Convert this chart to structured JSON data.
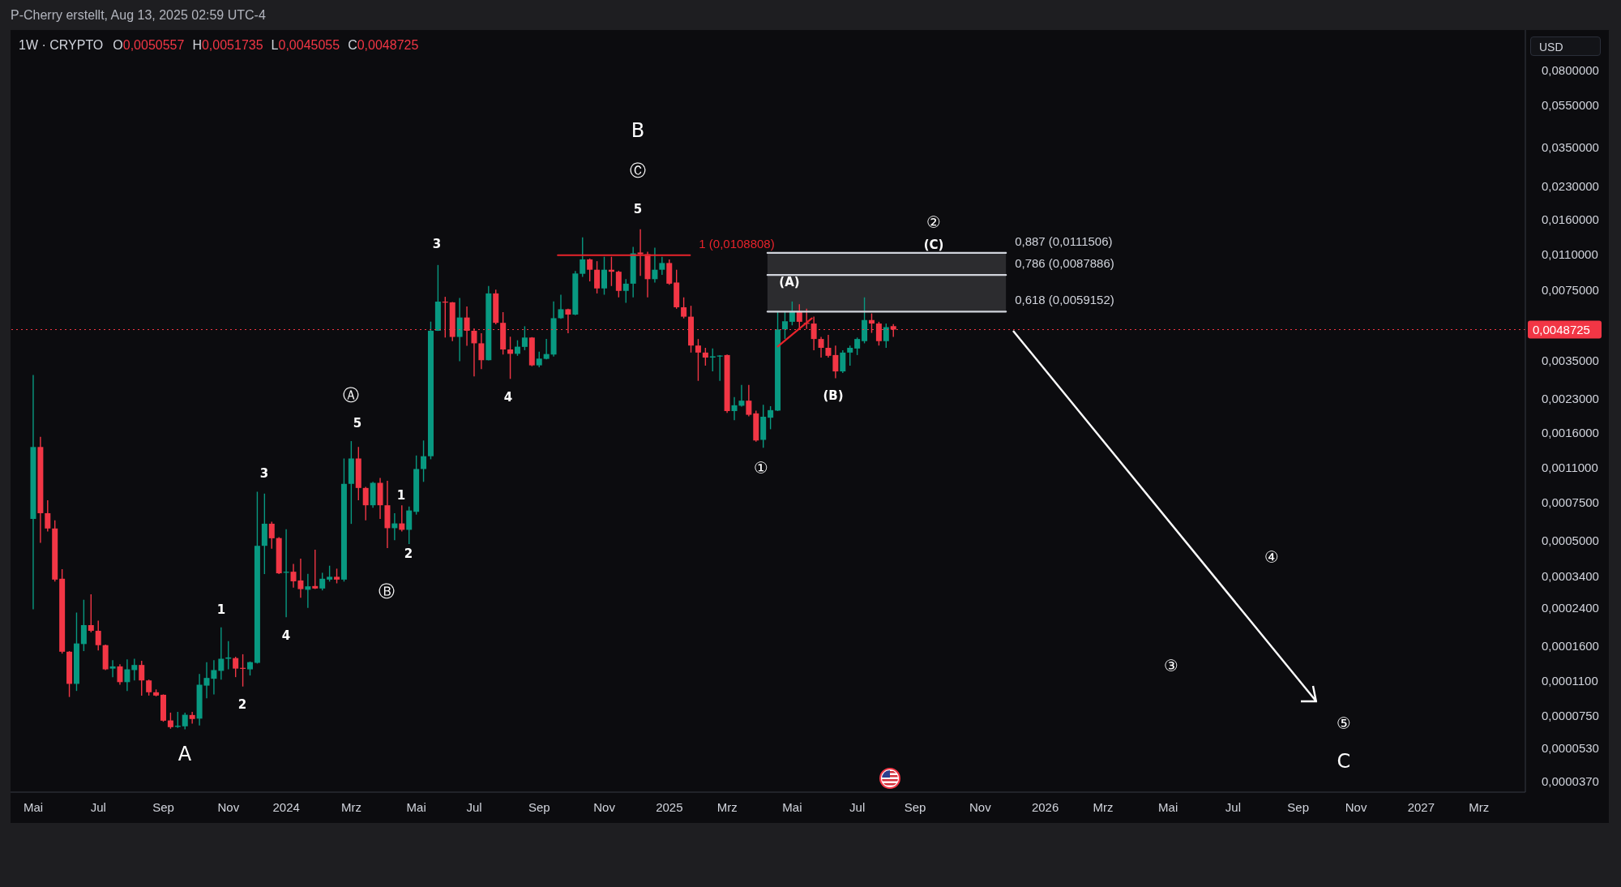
{
  "chart_data": {
    "type": "candlestick",
    "title": "1W · CRYPTO",
    "subtitle": "O0,0050557 H0,0051735 L0,0045055 C0,0048725",
    "ylabel": "USD",
    "x": [
      "2023-05-01",
      "2023-05-08",
      "2023-05-15",
      "2023-05-22",
      "2023-05-29",
      "2023-06-05",
      "2023-06-12",
      "2023-06-19",
      "2023-06-26",
      "2023-07-03",
      "2023-07-10",
      "2023-07-17",
      "2023-07-24",
      "2023-07-31",
      "2023-08-07",
      "2023-08-14",
      "2023-08-21",
      "2023-08-28",
      "2023-09-04",
      "2023-09-11",
      "2023-09-18",
      "2023-09-25",
      "2023-10-02",
      "2023-10-09",
      "2023-10-16",
      "2023-10-23",
      "2023-10-30",
      "2023-11-06",
      "2023-11-13",
      "2023-11-20",
      "2023-11-27",
      "2023-12-04",
      "2023-12-11",
      "2023-12-18",
      "2023-12-25",
      "2024-01-01",
      "2024-01-08",
      "2024-01-15",
      "2024-01-22",
      "2024-01-29",
      "2024-02-05",
      "2024-02-12",
      "2024-02-19",
      "2024-02-26",
      "2024-03-04",
      "2024-03-11",
      "2024-03-18",
      "2024-03-25",
      "2024-04-01",
      "2024-04-08",
      "2024-04-15",
      "2024-04-22",
      "2024-04-29",
      "2024-05-06",
      "2024-05-13",
      "2024-05-20",
      "2024-05-27",
      "2024-06-03",
      "2024-06-10",
      "2024-06-17",
      "2024-06-24",
      "2024-07-01",
      "2024-07-08",
      "2024-07-15",
      "2024-07-22",
      "2024-07-29",
      "2024-08-05",
      "2024-08-12",
      "2024-08-19",
      "2024-08-26",
      "2024-09-02",
      "2024-09-09",
      "2024-09-16",
      "2024-09-23",
      "2024-09-30",
      "2024-10-07",
      "2024-10-14",
      "2024-10-21",
      "2024-10-28",
      "2024-11-04",
      "2024-11-11",
      "2024-11-18",
      "2024-11-25",
      "2024-12-02",
      "2024-12-09",
      "2024-12-16",
      "2024-12-23",
      "2024-12-30",
      "2025-01-06",
      "2025-01-13",
      "2025-01-20",
      "2025-01-27",
      "2025-02-03",
      "2025-02-10",
      "2025-02-17",
      "2025-02-24",
      "2025-03-03",
      "2025-03-10",
      "2025-03-17",
      "2025-03-24",
      "2025-03-31",
      "2025-04-07",
      "2025-04-14",
      "2025-04-21",
      "2025-04-28",
      "2025-05-05",
      "2025-05-12",
      "2025-05-19",
      "2025-05-26",
      "2025-06-02",
      "2025-06-09",
      "2025-06-16",
      "2025-06-23",
      "2025-06-30",
      "2025-07-07",
      "2025-07-14",
      "2025-07-21",
      "2025-07-28",
      "2025-08-04",
      "2025-08-11"
    ],
    "ohlc": [
      [
        0.00063,
        0.00298,
        0.000237,
        0.00137
      ],
      [
        0.00137,
        0.00153,
        0.000486,
        0.00067
      ],
      [
        0.00067,
        0.00077,
        0.00055,
        0.000568
      ],
      [
        0.000568,
        0.00062,
        0.00032,
        0.000327
      ],
      [
        0.00033,
        0.000366,
        0.000147,
        0.00015
      ],
      [
        0.00015,
        0.000151,
        9.2e-05,
        0.000106
      ],
      [
        0.000106,
        0.000229,
        9.82e-05,
        0.000164
      ],
      [
        0.000163,
        0.000263,
        0.000151,
        0.0002
      ],
      [
        0.0002,
        0.000279,
        0.000185,
        0.000188
      ],
      [
        0.000188,
        0.00021,
        0.000152,
        0.000161
      ],
      [
        0.000161,
        0.000162,
        0.000123,
        0.000124
      ],
      [
        0.000125,
        0.000137,
        0.000114,
        0.000128
      ],
      [
        0.000128,
        0.000131,
        0.000105,
        0.000108
      ],
      [
        0.000108,
        0.000138,
        9.82e-05,
        0.000124
      ],
      [
        0.000123,
        0.000139,
        0.00011,
        0.00013
      ],
      [
        0.00013,
        0.000136,
        9.34e-05,
        0.00011
      ],
      [
        0.00011,
        0.000111,
        9.34e-05,
        9.68e-05
      ],
      [
        9.68e-05,
        9.98e-05,
        9.26e-05,
        9.34e-05
      ],
      [
        9.42e-05,
        9.46e-05,
        7.04e-05,
        7.12e-05
      ],
      [
        7.14e-05,
        7.77e-05,
        6.53e-05,
        6.64e-05
      ],
      [
        6.66e-05,
        7.83e-05,
        6.59e-05,
        6.74e-05
      ],
      [
        6.7e-05,
        7.77e-05,
        6.48e-05,
        7.59e-05
      ],
      [
        7.57e-05,
        7.83e-05,
        6.89e-05,
        7.25e-05
      ],
      [
        7.28e-05,
        0.000118,
        6.76e-05,
        0.000105
      ],
      [
        0.000104,
        0.000134,
        9.07e-05,
        0.000113
      ],
      [
        0.000112,
        0.000137,
        9.46e-05,
        0.000123
      ],
      [
        0.000122,
        0.000195,
        0.000111,
        0.000139
      ],
      [
        0.000139,
        0.000168,
        0.000124,
        0.000141
      ],
      [
        0.00014,
        0.000142,
        0.000114,
        0.000125
      ],
      [
        0.000126,
        0.000146,
        0.000103,
        0.000125
      ],
      [
        0.000124,
        0.000135,
        0.000116,
        0.000134
      ],
      [
        0.000133,
        0.000845,
        0.000132,
        0.000471
      ],
      [
        0.000471,
        0.000828,
        0.000347,
        0.000598
      ],
      [
        0.000598,
        0.000611,
        0.000457,
        0.000511
      ],
      [
        0.000512,
        0.000517,
        0.000347,
        0.00035
      ],
      [
        0.000352,
        0.000564,
        0.000218,
        0.000356
      ],
      [
        0.000356,
        0.000387,
        0.0003,
        0.000321
      ],
      [
        0.000324,
        0.00041,
        0.000269,
        0.000295
      ],
      [
        0.000293,
        0.000348,
        0.000241,
        0.000304
      ],
      [
        0.000305,
        0.000452,
        0.000295,
        0.000297
      ],
      [
        0.000297,
        0.000352,
        0.000291,
        0.00033
      ],
      [
        0.000327,
        0.00038,
        0.00032,
        0.000337
      ],
      [
        0.000337,
        0.000368,
        0.000314,
        0.000327
      ],
      [
        0.000327,
        0.00121,
        0.00032,
        0.00092
      ],
      [
        0.00092,
        0.00146,
        0.000597,
        0.00121
      ],
      [
        0.00121,
        0.00137,
        0.00077,
        0.00088
      ],
      [
        0.00088,
        0.00089,
        0.00062,
        0.00073
      ],
      [
        0.00073,
        0.00094,
        0.00071,
        0.00093
      ],
      [
        0.00093,
        0.00098,
        0.00063,
        0.00073
      ],
      [
        0.00073,
        0.00095,
        0.00046,
        0.00057
      ],
      [
        0.00057,
        0.00067,
        0.0005,
        0.0006
      ],
      [
        0.0006,
        0.00073,
        0.00055,
        0.00056
      ],
      [
        0.00056,
        0.00072,
        0.00048,
        0.00069
      ],
      [
        0.00068,
        0.00125,
        0.00066,
        0.00108
      ],
      [
        0.00108,
        0.00147,
        0.00094,
        0.00124
      ],
      [
        0.00124,
        0.00531,
        0.0012,
        0.00481
      ],
      [
        0.00481,
        0.00979,
        0.0048,
        0.00659
      ],
      [
        0.00659,
        0.00694,
        0.00447,
        0.00654
      ],
      [
        0.00654,
        0.00656,
        0.0043,
        0.0045
      ],
      [
        0.0045,
        0.00686,
        0.00346,
        0.00555
      ],
      [
        0.00555,
        0.00625,
        0.00409,
        0.00481
      ],
      [
        0.00481,
        0.00494,
        0.00294,
        0.0042
      ],
      [
        0.0042,
        0.00468,
        0.00318,
        0.0035
      ],
      [
        0.0035,
        0.0078,
        0.00349,
        0.0072
      ],
      [
        0.0072,
        0.0075,
        0.00516,
        0.00524
      ],
      [
        0.00524,
        0.00588,
        0.00372,
        0.00393
      ],
      [
        0.00393,
        0.00451,
        0.00286,
        0.00375
      ],
      [
        0.00375,
        0.00434,
        0.00367,
        0.00405
      ],
      [
        0.00404,
        0.00505,
        0.0039,
        0.00447
      ],
      [
        0.00447,
        0.00449,
        0.00328,
        0.00331
      ],
      [
        0.00331,
        0.00384,
        0.00324,
        0.00356
      ],
      [
        0.00355,
        0.0044,
        0.00353,
        0.00374
      ],
      [
        0.00372,
        0.0066,
        0.00364,
        0.00551
      ],
      [
        0.00551,
        0.0071,
        0.00547,
        0.00607
      ],
      [
        0.00607,
        0.0061,
        0.00468,
        0.00573
      ],
      [
        0.00573,
        0.00918,
        0.00569,
        0.00893
      ],
      [
        0.0089,
        0.0132,
        0.0086,
        0.0104
      ],
      [
        0.0104,
        0.0105,
        0.0082,
        0.0093
      ],
      [
        0.0093,
        0.0102,
        0.0072,
        0.0076
      ],
      [
        0.0076,
        0.0107,
        0.0071,
        0.0093
      ],
      [
        0.0093,
        0.0107,
        0.0078,
        0.0091
      ],
      [
        0.0091,
        0.0092,
        0.0069,
        0.0074
      ],
      [
        0.0074,
        0.0084,
        0.0065,
        0.008
      ],
      [
        0.008,
        0.0119,
        0.0069,
        0.0111
      ],
      [
        0.0112,
        0.0144,
        0.0087,
        0.011
      ],
      [
        0.011,
        0.0113,
        0.0069,
        0.0084
      ],
      [
        0.0084,
        0.0118,
        0.0081,
        0.0093
      ],
      [
        0.0093,
        0.0107,
        0.0088,
        0.01
      ],
      [
        0.01,
        0.0104,
        0.0079,
        0.008
      ],
      [
        0.0081,
        0.0093,
        0.0061,
        0.0062
      ],
      [
        0.0062,
        0.0069,
        0.0055,
        0.0056
      ],
      [
        0.0056,
        0.0063,
        0.0038,
        0.0041
      ],
      [
        0.0041,
        0.0044,
        0.0028,
        0.0038
      ],
      [
        0.0038,
        0.004,
        0.0033,
        0.0036
      ],
      [
        0.0036,
        0.00397,
        0.0031,
        0.00365
      ],
      [
        0.00364,
        0.0037,
        0.0028,
        0.00368
      ],
      [
        0.0037,
        0.00372,
        0.00198,
        0.00202
      ],
      [
        0.00202,
        0.00235,
        0.00183,
        0.00215
      ],
      [
        0.00214,
        0.00268,
        0.00212,
        0.00226
      ],
      [
        0.00226,
        0.00268,
        0.00191,
        0.00194
      ],
      [
        0.00197,
        0.00203,
        0.00145,
        0.00147
      ],
      [
        0.00148,
        0.00216,
        0.00136,
        0.0019
      ],
      [
        0.00188,
        0.00213,
        0.00166,
        0.00204
      ],
      [
        0.00203,
        0.00595,
        0.00202,
        0.00488
      ],
      [
        0.00488,
        0.00595,
        0.0044,
        0.00533
      ],
      [
        0.0053,
        0.0066,
        0.0051,
        0.00595
      ],
      [
        0.00595,
        0.0064,
        0.0049,
        0.0053
      ],
      [
        0.00524,
        0.0061,
        0.0049,
        0.0052
      ],
      [
        0.0052,
        0.0056,
        0.0039,
        0.0044
      ],
      [
        0.0044,
        0.0045,
        0.0036,
        0.004
      ],
      [
        0.004,
        0.0046,
        0.0036,
        0.00367
      ],
      [
        0.0037,
        0.0041,
        0.00288,
        0.0031
      ],
      [
        0.0031,
        0.0039,
        0.00305,
        0.0038
      ],
      [
        0.0038,
        0.0041,
        0.0033,
        0.004
      ],
      [
        0.00397,
        0.00447,
        0.0037,
        0.0044
      ],
      [
        0.0043,
        0.0069,
        0.0042,
        0.0054
      ],
      [
        0.0054,
        0.0058,
        0.0047,
        0.0052
      ],
      [
        0.0052,
        0.0053,
        0.0041,
        0.0043
      ],
      [
        0.0043,
        0.0052,
        0.004,
        0.005
      ],
      [
        0.0050557,
        0.0051735,
        0.0045055,
        0.0048725
      ]
    ],
    "colors": [
      "#089981",
      "#f23645",
      "#f23645",
      "#f23645",
      "#f23645",
      "#f23645",
      "#089981",
      "#089981",
      "#f23645",
      "#f23645",
      "#f23645",
      "#089981",
      "#f23645",
      "#089981",
      "#089981",
      "#f23645",
      "#f23645",
      "#f23645",
      "#f23645",
      "#f23645",
      "#089981",
      "#089981",
      "#f23645",
      "#089981",
      "#089981",
      "#089981",
      "#089981",
      "#089981",
      "#f23645",
      "#f23645",
      "#089981",
      "#089981",
      "#089981",
      "#f23645",
      "#f23645",
      "#089981",
      "#f23645",
      "#f23645",
      "#089981",
      "#f23645",
      "#089981",
      "#089981",
      "#f23645",
      "#089981",
      "#089981",
      "#f23645",
      "#f23645",
      "#089981",
      "#f23645",
      "#f23645",
      "#089981",
      "#f23645",
      "#089981",
      "#089981",
      "#089981",
      "#089981",
      "#089981",
      "#f23645",
      "#f23645",
      "#089981",
      "#f23645",
      "#f23645",
      "#f23645",
      "#089981",
      "#f23645",
      "#f23645",
      "#f23645",
      "#089981",
      "#089981",
      "#f23645",
      "#089981",
      "#089981",
      "#089981",
      "#089981",
      "#f23645",
      "#089981",
      "#089981",
      "#f23645",
      "#f23645",
      "#089981",
      "#f23645",
      "#f23645",
      "#089981",
      "#089981",
      "#f23645",
      "#f23645",
      "#089981",
      "#089981",
      "#f23645",
      "#f23645",
      "#f23645",
      "#f23645",
      "#f23645",
      "#f23645",
      "#089981",
      "#089981",
      "#f23645",
      "#089981",
      "#089981",
      "#f23645",
      "#f23645",
      "#089981",
      "#089981",
      "#089981",
      "#089981",
      "#089981",
      "#f23645",
      "#f23645",
      "#f23645",
      "#f23645",
      "#f23645",
      "#f23645",
      "#089981",
      "#089981",
      "#089981",
      "#089981",
      "#f23645",
      "#f23645",
      "#089981",
      "#f23645"
    ],
    "log": true,
    "ylim": [
      3.29e-05,
      0.124
    ],
    "yticks": [
      {
        "value": 0.08,
        "label": "0,0800000"
      },
      {
        "value": 0.055,
        "label": "0,0550000"
      },
      {
        "value": 0.035,
        "label": "0,0350000"
      },
      {
        "value": 0.023,
        "label": "0,0230000"
      },
      {
        "value": 0.016,
        "label": "0,0160000"
      },
      {
        "value": 0.011,
        "label": "0,0110000"
      },
      {
        "value": 0.0075,
        "label": "0,0075000"
      },
      {
        "value": 0.0035,
        "label": "0,0035000"
      },
      {
        "value": 0.0023,
        "label": "0,0023000"
      },
      {
        "value": 0.0016,
        "label": "0,0016000"
      },
      {
        "value": 0.0011,
        "label": "0,0011000"
      },
      {
        "value": 0.00075,
        "label": "0,0007500"
      },
      {
        "value": 0.0005,
        "label": "0,0005000"
      },
      {
        "value": 0.00034,
        "label": "0,0003400"
      },
      {
        "value": 0.00024,
        "label": "0,0002400"
      },
      {
        "value": 0.00016,
        "label": "0,0001600"
      },
      {
        "value": 0.00011,
        "label": "0,0001100"
      },
      {
        "value": 7.5e-05,
        "label": "0,0000750"
      },
      {
        "value": 5.3e-05,
        "label": "0,0000530"
      },
      {
        "value": 3.7e-05,
        "label": "0,0000370"
      }
    ],
    "xlim": [
      "2023-04-09",
      "2027-04-15"
    ],
    "xticks": [
      {
        "value": "2023-05-01",
        "label": "Mai"
      },
      {
        "value": "2023-07-03",
        "label": "Jul"
      },
      {
        "value": "2023-09-04",
        "label": "Sep"
      },
      {
        "value": "2023-11-06",
        "label": "Nov"
      },
      {
        "value": "2024-01-01",
        "label": "2024"
      },
      {
        "value": "2024-03-04",
        "label": "Mrz"
      },
      {
        "value": "2024-05-06",
        "label": "Mai"
      },
      {
        "value": "2024-07-01",
        "label": "Jul"
      },
      {
        "value": "2024-09-02",
        "label": "Sep"
      },
      {
        "value": "2024-11-04",
        "label": "Nov"
      },
      {
        "value": "2025-01-06",
        "label": "2025"
      },
      {
        "value": "2025-03-03",
        "label": "Mrz"
      },
      {
        "value": "2025-05-05",
        "label": "Mai"
      },
      {
        "value": "2025-07-07",
        "label": "Jul"
      },
      {
        "value": "2025-09-01",
        "label": "Sep"
      },
      {
        "value": "2025-11-03",
        "label": "Nov"
      },
      {
        "value": "2026-01-05",
        "label": "2026"
      },
      {
        "value": "2026-03-02",
        "label": "Mrz"
      },
      {
        "value": "2026-05-04",
        "label": "Mai"
      },
      {
        "value": "2026-07-06",
        "label": "Jul"
      },
      {
        "value": "2026-09-07",
        "label": "Sep"
      },
      {
        "value": "2026-11-02",
        "label": "Nov"
      },
      {
        "value": "2027-01-04",
        "label": "2027"
      },
      {
        "value": "2027-03-01",
        "label": "Mrz"
      }
    ],
    "series": [
      {
        "type": "line",
        "name": "1 (0,0108808)",
        "color": "#e8232b",
        "x": [
          "2024-09-20",
          "2025-01-26"
        ],
        "values": [
          0.0108808,
          0.0108808
        ]
      },
      {
        "type": "line",
        "name": "0,887 (0,0111506)",
        "color": "#d1d4dc",
        "x": [
          "2025-04-11",
          "2025-11-28"
        ],
        "values": [
          0.0111506,
          0.0111506
        ]
      },
      {
        "type": "line",
        "name": "0,786 (0,0087886)",
        "color": "#d1d4dc",
        "x": [
          "2025-04-11",
          "2025-11-28"
        ],
        "values": [
          0.0087886,
          0.0087886
        ],
        "lower": [
          0.0059152,
          0.0059152
        ],
        "upper": [
          0.0111506,
          0.0111506
        ]
      },
      {
        "type": "line",
        "name": "0,618 (0,0059152)",
        "color": "#d1d4dc",
        "x": [
          "2025-04-11",
          "2025-11-28"
        ],
        "values": [
          0.0059152,
          0.0059152
        ]
      },
      {
        "type": "line",
        "color": "#e8232b",
        "x": [
          "2025-04-21",
          "2025-05-24"
        ],
        "values": [
          0.00406,
          0.0055
        ]
      }
    ],
    "ref_lines": [
      {
        "axis": "y",
        "value": 0.0048725,
        "label": "0,0048725",
        "color": "#f23645",
        "line_style": "dotted"
      }
    ],
    "annotations": [
      "P-Cherry erstellt, Aug 13, 2025 02:59 UTC-4",
      "A",
      "B",
      "Ⓒ",
      "5",
      "3",
      "4",
      "Ⓐ",
      "5",
      "3",
      "1",
      "2",
      "4",
      "1",
      "2",
      "Ⓑ",
      "①",
      "(A)",
      "(B)",
      "②",
      "(C)",
      "③",
      "④",
      "⑤",
      "C"
    ]
  }
}
